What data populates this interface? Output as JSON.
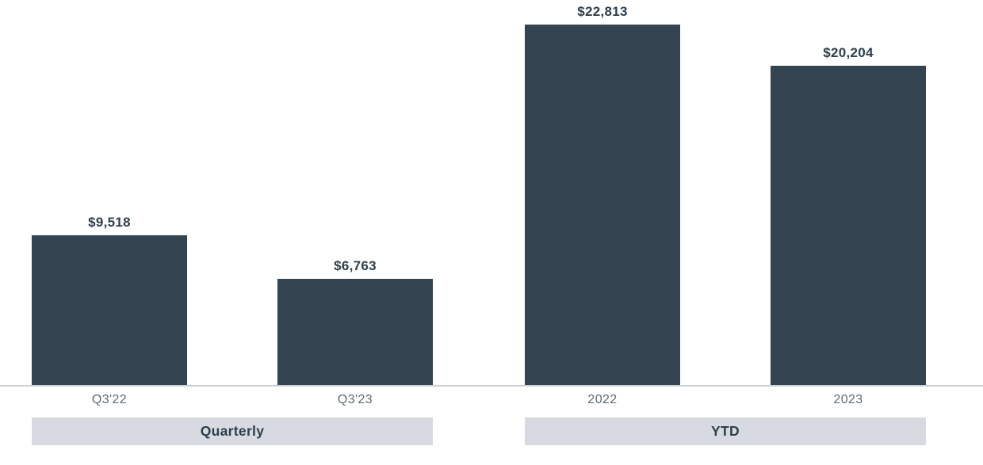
{
  "chart_data": {
    "type": "bar",
    "title": "",
    "xlabel": "",
    "ylabel": "",
    "ylim": [
      0,
      24350
    ],
    "grid": false,
    "legend": false,
    "axis_labels_visible": false,
    "groups": [
      {
        "label": "Quarterly",
        "bars": [
          {
            "category": "Q3'22",
            "value": 9518,
            "value_label": "$9,518"
          },
          {
            "category": "Q3'23",
            "value": 6763,
            "value_label": "$6,763"
          }
        ]
      },
      {
        "label": "YTD",
        "bars": [
          {
            "category": "2022",
            "value": 22813,
            "value_label": "$22,813"
          },
          {
            "category": "2023",
            "value": 20204,
            "value_label": "$20,204"
          }
        ]
      }
    ],
    "colors": {
      "bar_color": "#344551",
      "label_color": "#2e3f4c",
      "tick_color": "#5f6a74",
      "band_bg": "#d7dbe1",
      "axis_line_color": "#cdd0d4",
      "background": "#ffffff"
    }
  }
}
